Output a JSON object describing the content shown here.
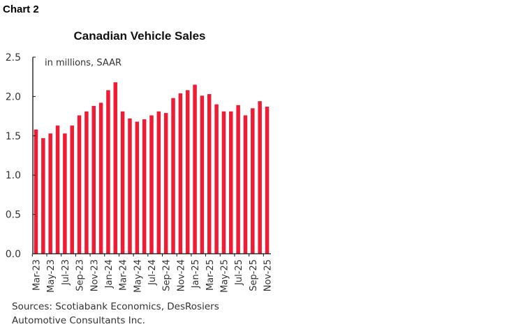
{
  "header": {
    "chart_label": "Chart 2"
  },
  "chart_data": {
    "type": "bar",
    "title": "Canadian Vehicle Sales",
    "unit_note": "in millions, SAAR",
    "xlabel": "",
    "ylabel": "",
    "ylim": [
      0,
      2.5
    ],
    "yticks": [
      "0.0",
      "0.5",
      "1.0",
      "1.5",
      "2.0",
      "2.5"
    ],
    "grid": false,
    "bar_color": "#EE1C35",
    "categories": [
      "Mar-23",
      "Apr-23",
      "May-23",
      "Jun-23",
      "Jul-23",
      "Aug-23",
      "Sep-23",
      "Oct-23",
      "Nov-23",
      "Dec-23",
      "Jan-24",
      "Feb-24",
      "Mar-24",
      "Apr-24",
      "May-24",
      "Jun-24",
      "Jul-24",
      "Aug-24",
      "Sep-24",
      "Oct-24",
      "Nov-24",
      "Dec-24",
      "Jan-25",
      "Feb-25",
      "Mar-25",
      "Apr-25",
      "May-25",
      "Jun-25",
      "Jul-25",
      "Aug-25",
      "Sep-25",
      "Oct-25",
      "Nov-25"
    ],
    "xtick_labels": [
      "Mar-23",
      "May-23",
      "Jul-23",
      "Sep-23",
      "Nov-23",
      "Jan-24",
      "Mar-24",
      "May-24",
      "Jul-24",
      "Sep-24",
      "Nov-24",
      "Jan-25",
      "Mar-25",
      "May-25",
      "Jul-25",
      "Sep-25",
      "Nov-25"
    ],
    "values": [
      1.58,
      1.47,
      1.53,
      1.63,
      1.53,
      1.63,
      1.76,
      1.81,
      1.88,
      1.92,
      2.08,
      2.18,
      1.81,
      1.72,
      1.68,
      1.71,
      1.76,
      1.81,
      1.79,
      1.98,
      2.04,
      2.08,
      2.15,
      2.01,
      2.03,
      1.9,
      1.81,
      1.81,
      1.89,
      1.76,
      1.85,
      1.94,
      1.87
    ]
  },
  "footer": {
    "source_line1": "Sources: Scotiabank Economics, DesRosiers",
    "source_line2": "Automotive Consultants Inc."
  }
}
